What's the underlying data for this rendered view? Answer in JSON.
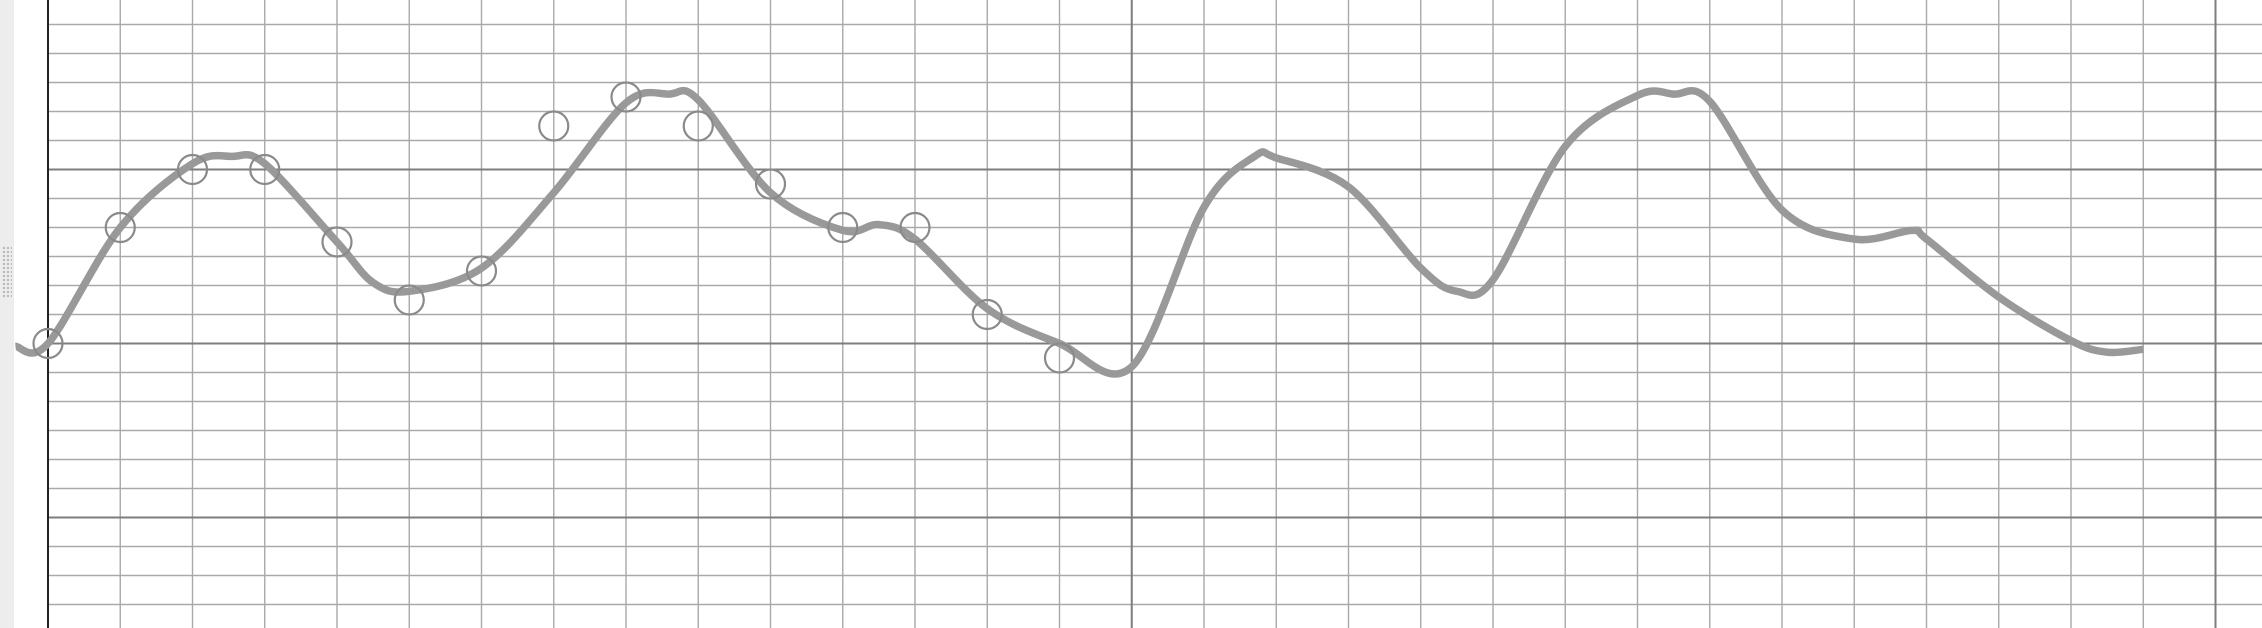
{
  "colors": {
    "background": "#ffffff",
    "side_strip": "#ededed",
    "grid_minor": "#a9a9a9",
    "grid_major": "#7d7d7d",
    "left_axis": "#222222",
    "curve": "#999999",
    "marker_stroke": "#8a8a8a"
  },
  "chart_data": {
    "type": "line",
    "grid": true,
    "xlim": [
      0,
      30
    ],
    "ylim": [
      10,
      -11.7
    ],
    "y_major_every": 6,
    "x_major_every": 15,
    "series": [
      {
        "kind": "smooth-curve",
        "x": [
          -0.45,
          0,
          1,
          2,
          2.55,
          3,
          4,
          4.5,
          5,
          6,
          7,
          8,
          8.6,
          9,
          10,
          11,
          11.5,
          12,
          13,
          14,
          15,
          16,
          16.7,
          17,
          18,
          19,
          19.5,
          20,
          21,
          22,
          22.5,
          23,
          24,
          25,
          25.8,
          26,
          27,
          28,
          28.5,
          29
        ],
        "y": [
          0.1,
          0,
          -4,
          -6.2,
          -6.45,
          -6.2,
          -3.5,
          -2.1,
          -1.8,
          -2.6,
          -5.2,
          -8.3,
          -8.6,
          -8.4,
          -5.2,
          -3.9,
          -4.1,
          -3.6,
          -1.2,
          0,
          0.8,
          -4.7,
          -6.45,
          -6.4,
          -5.4,
          -2.6,
          -1.8,
          -2.2,
          -6.8,
          -8.55,
          -8.6,
          -8.35,
          -4.6,
          -3.6,
          -3.9,
          -3.6,
          -1.6,
          -0.1,
          0.3,
          0.2
        ]
      },
      {
        "kind": "markers",
        "x": [
          0,
          1,
          2,
          3,
          4,
          5,
          6,
          7,
          8,
          9,
          10,
          11,
          12,
          13,
          14
        ],
        "y": [
          0,
          -4,
          -6,
          -6,
          -3.5,
          -1.5,
          -2.5,
          -7.5,
          -8.5,
          -7.5,
          -5.5,
          -4,
          -4,
          -1,
          0.5
        ]
      }
    ]
  }
}
